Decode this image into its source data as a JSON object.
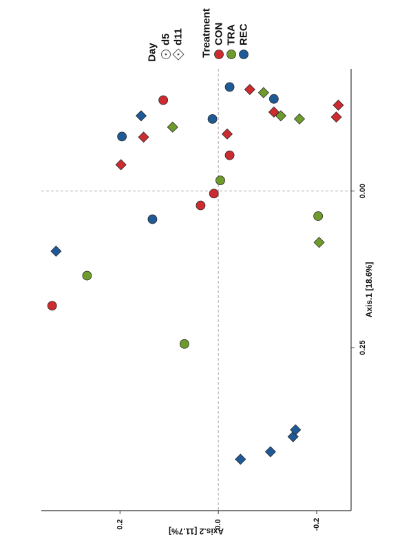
{
  "chart_data": {
    "type": "scatter",
    "xlabel": "Axis.1   [18.6%]",
    "ylabel": "Axis.2   [11.7%]",
    "xlim": [
      -0.195,
      0.51
    ],
    "ylim": [
      -0.27,
      0.36
    ],
    "x_ticks": [
      0.0,
      0.25
    ],
    "x_tick_labels": [
      "0.00",
      "0.25"
    ],
    "y_ticks": [
      -0.2,
      0.0,
      0.2
    ],
    "y_tick_labels": [
      "-0.2",
      "0.0",
      "0.2"
    ],
    "reference_lines": {
      "x": 0.0,
      "y": 0.0
    },
    "orientation": "rotated 90 degrees counter-clockwise",
    "legend": {
      "placement": "top-right",
      "treatment_title": "Treatment",
      "treatment_entries": [
        {
          "name": "CON",
          "color": "#cc2b2f"
        },
        {
          "name": "TRA",
          "color": "#6e9b2c"
        },
        {
          "name": "REC",
          "color": "#1f5a96"
        }
      ],
      "day_title": "Day",
      "day_entries": [
        {
          "name": "d5",
          "shape": "circle"
        },
        {
          "name": "d11",
          "shape": "diamond"
        }
      ]
    },
    "series": [
      {
        "name": "CON",
        "color": "#cc2b2f",
        "points": [
          {
            "x": 0.183,
            "y": 0.338,
            "day": "d5"
          },
          {
            "x": 0.023,
            "y": 0.036,
            "day": "d5"
          },
          {
            "x": 0.004,
            "y": 0.009,
            "day": "d5"
          },
          {
            "x": -0.057,
            "y": -0.023,
            "day": "d5"
          },
          {
            "x": -0.145,
            "y": 0.112,
            "day": "d5"
          },
          {
            "x": -0.042,
            "y": 0.198,
            "day": "d11"
          },
          {
            "x": -0.086,
            "y": 0.152,
            "day": "d11"
          },
          {
            "x": -0.091,
            "y": -0.018,
            "day": "d11"
          },
          {
            "x": -0.126,
            "y": -0.113,
            "day": "d11"
          },
          {
            "x": -0.162,
            "y": -0.064,
            "day": "d11"
          },
          {
            "x": -0.118,
            "y": -0.24,
            "day": "d11"
          },
          {
            "x": -0.137,
            "y": -0.244,
            "day": "d11"
          }
        ]
      },
      {
        "name": "TRA",
        "color": "#6e9b2c",
        "points": [
          {
            "x": 0.244,
            "y": 0.069,
            "day": "d5"
          },
          {
            "x": 0.135,
            "y": 0.267,
            "day": "d5"
          },
          {
            "x": 0.04,
            "y": -0.203,
            "day": "d5"
          },
          {
            "x": -0.017,
            "y": -0.004,
            "day": "d5"
          },
          {
            "x": 0.082,
            "y": -0.205,
            "day": "d11"
          },
          {
            "x": -0.102,
            "y": 0.093,
            "day": "d11"
          },
          {
            "x": -0.115,
            "y": -0.165,
            "day": "d11"
          },
          {
            "x": -0.12,
            "y": -0.127,
            "day": "d11"
          },
          {
            "x": -0.157,
            "y": -0.092,
            "day": "d11"
          }
        ]
      },
      {
        "name": "REC",
        "color": "#1f5a96",
        "points": [
          {
            "x": 0.045,
            "y": 0.134,
            "day": "d5"
          },
          {
            "x": -0.087,
            "y": 0.196,
            "day": "d5"
          },
          {
            "x": -0.115,
            "y": 0.012,
            "day": "d5"
          },
          {
            "x": -0.147,
            "y": -0.113,
            "day": "d5"
          },
          {
            "x": -0.166,
            "y": -0.023,
            "day": "d5"
          },
          {
            "x": 0.428,
            "y": -0.045,
            "day": "d11"
          },
          {
            "x": 0.416,
            "y": -0.106,
            "day": "d11"
          },
          {
            "x": 0.392,
            "y": -0.152,
            "day": "d11"
          },
          {
            "x": 0.381,
            "y": -0.157,
            "day": "d11"
          },
          {
            "x": 0.096,
            "y": 0.33,
            "day": "d11"
          },
          {
            "x": -0.12,
            "y": 0.157,
            "day": "d11"
          }
        ]
      }
    ]
  }
}
